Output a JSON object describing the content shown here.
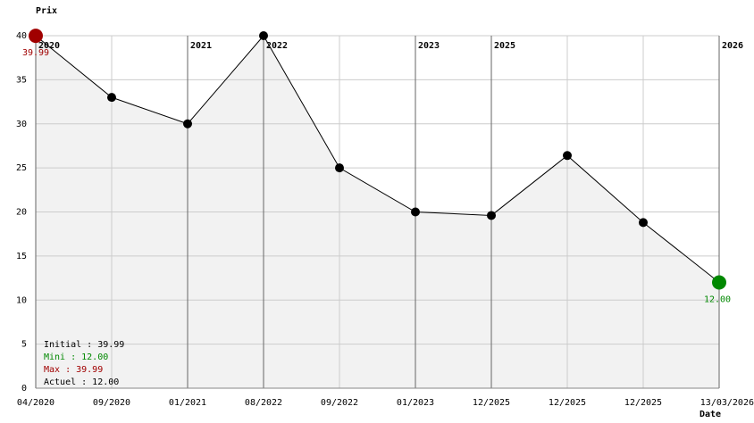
{
  "chart_data": {
    "type": "line",
    "y_label": "Prix",
    "x_label": "Date",
    "categories": [
      "04/2020",
      "09/2020",
      "01/2021",
      "08/2022",
      "09/2022",
      "01/2023",
      "12/2025",
      "12/2025",
      "12/2025",
      "13/03/2026"
    ],
    "values": [
      39.99,
      33,
      30,
      40,
      25,
      20,
      19.6,
      26.4,
      18.8,
      12
    ],
    "value_labels": [
      "39.99",
      null,
      null,
      null,
      null,
      null,
      null,
      null,
      null,
      "12.00"
    ],
    "color": "#000000",
    "fill": "#f2f2f2",
    "first_color": "#a00000",
    "last_color": "#008800",
    "ylim": [
      0,
      40
    ],
    "yticks": [
      0,
      5,
      10,
      15,
      20,
      25,
      30,
      35,
      40
    ],
    "grid": true,
    "year_markers": [
      {
        "index": 0,
        "label": "2020"
      },
      {
        "index": 2,
        "label": "2021"
      },
      {
        "index": 3,
        "label": "2022"
      },
      {
        "index": 5,
        "label": "2023"
      },
      {
        "index": 6,
        "label": "2025"
      },
      {
        "index": 9,
        "label": "2026"
      }
    ],
    "legend": [
      {
        "text": "Initial : 39.99",
        "color": "#000000"
      },
      {
        "text": "Mini : 12.00",
        "color": "#008800"
      },
      {
        "text": "Max : 39.99",
        "color": "#a00000"
      },
      {
        "text": "Actuel : 12.00",
        "color": "#000000"
      }
    ]
  }
}
